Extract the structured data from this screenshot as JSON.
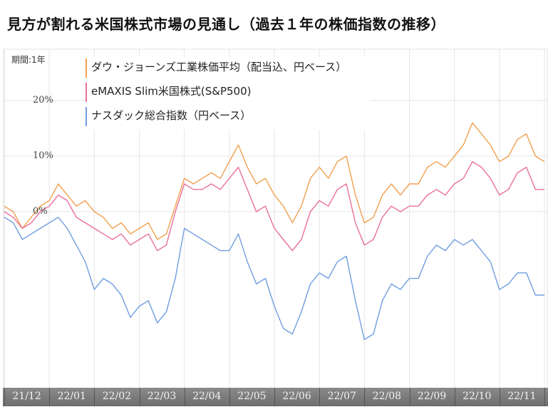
{
  "title": "見方が割れる米国株式市場の見通し（過去１年の株価指数の推移）",
  "chart_data": {
    "type": "line",
    "title": "見方が割れる米国株式市場の見通し（過去１年の株価指数の推移）",
    "period_label": "期間:1年",
    "xlabel": "",
    "ylabel": "",
    "ylim": [
      -24,
      29
    ],
    "yticks": [
      {
        "value": 20,
        "label": "20%"
      },
      {
        "value": 10,
        "label": "10%"
      },
      {
        "value": 0,
        "label": "0%"
      }
    ],
    "categories": [
      "21/12",
      "22/01",
      "22/02",
      "22/03",
      "22/04",
      "22/05",
      "22/06",
      "22/07",
      "22/08",
      "22/09",
      "22/10",
      "22/11"
    ],
    "x_unit": "month index (0 = start of 21/11 end, 12 = 22/11 end)",
    "legend": "top-left",
    "grid": true,
    "series": [
      {
        "name": "ダウ・ジョーンズ工業株価平均（配当込、円ベース）",
        "color": "#f0a050",
        "x": [
          0,
          0.2,
          0.4,
          0.6,
          0.8,
          1.0,
          1.2,
          1.4,
          1.6,
          1.8,
          2.0,
          2.2,
          2.4,
          2.6,
          2.8,
          3.0,
          3.2,
          3.4,
          3.6,
          3.8,
          4.0,
          4.2,
          4.4,
          4.6,
          4.8,
          5.0,
          5.2,
          5.4,
          5.6,
          5.8,
          6.0,
          6.2,
          6.4,
          6.6,
          6.8,
          7.0,
          7.2,
          7.4,
          7.6,
          7.8,
          8.0,
          8.2,
          8.4,
          8.6,
          8.8,
          9.0,
          9.2,
          9.4,
          9.6,
          9.8,
          10.0,
          10.2,
          10.4,
          10.6,
          10.8,
          11.0,
          11.2,
          11.4,
          11.6,
          11.8,
          12.0
        ],
        "values": [
          1,
          0,
          -3,
          -1,
          1,
          2,
          5,
          3,
          1,
          2,
          0,
          -1,
          -3,
          -2,
          -4,
          -3,
          -2,
          -5,
          -4,
          1,
          6,
          5,
          6,
          7,
          6,
          9,
          12,
          8,
          5,
          6,
          3,
          1,
          -2,
          1,
          6,
          8,
          6,
          9,
          10,
          3,
          -2,
          -1,
          3,
          5,
          3,
          5,
          5,
          8,
          9,
          8,
          10,
          12,
          16,
          14,
          12,
          9,
          10,
          13,
          14,
          10,
          9
        ]
      },
      {
        "name": "eMAXIS Slim米国株式(S&P500)",
        "color": "#e8709a",
        "x": [
          0,
          0.2,
          0.4,
          0.6,
          0.8,
          1.0,
          1.2,
          1.4,
          1.6,
          1.8,
          2.0,
          2.2,
          2.4,
          2.6,
          2.8,
          3.0,
          3.2,
          3.4,
          3.6,
          3.8,
          4.0,
          4.2,
          4.4,
          4.6,
          4.8,
          5.0,
          5.2,
          5.4,
          5.6,
          5.8,
          6.0,
          6.2,
          6.4,
          6.6,
          6.8,
          7.0,
          7.2,
          7.4,
          7.6,
          7.8,
          8.0,
          8.2,
          8.4,
          8.6,
          8.8,
          9.0,
          9.2,
          9.4,
          9.6,
          9.8,
          10.0,
          10.2,
          10.4,
          10.6,
          10.8,
          11.0,
          11.2,
          11.4,
          11.6,
          11.8,
          12.0
        ],
        "values": [
          0,
          -1,
          -3,
          -2,
          0,
          1,
          3,
          2,
          -1,
          -2,
          -3,
          -4,
          -5,
          -4,
          -6,
          -5,
          -4,
          -7,
          -6,
          0,
          5,
          4,
          4,
          5,
          4,
          6,
          8,
          4,
          0,
          1,
          -3,
          -5,
          -7,
          -5,
          0,
          2,
          1,
          4,
          5,
          -2,
          -6,
          -5,
          -1,
          1,
          0,
          1,
          1,
          3,
          4,
          3,
          5,
          6,
          9,
          8,
          6,
          3,
          4,
          7,
          8,
          4,
          4
        ]
      },
      {
        "name": "ナスダック総合指数（円ベース）",
        "color": "#6f9ee0",
        "x": [
          0,
          0.2,
          0.4,
          0.6,
          0.8,
          1.0,
          1.2,
          1.4,
          1.6,
          1.8,
          2.0,
          2.2,
          2.4,
          2.6,
          2.8,
          3.0,
          3.2,
          3.4,
          3.6,
          3.8,
          4.0,
          4.2,
          4.4,
          4.6,
          4.8,
          5.0,
          5.2,
          5.4,
          5.6,
          5.8,
          6.0,
          6.2,
          6.4,
          6.6,
          6.8,
          7.0,
          7.2,
          7.4,
          7.6,
          7.8,
          8.0,
          8.2,
          8.4,
          8.6,
          8.8,
          9.0,
          9.2,
          9.4,
          9.6,
          9.8,
          10.0,
          10.2,
          10.4,
          10.6,
          10.8,
          11.0,
          11.2,
          11.4,
          11.6,
          11.8,
          12.0
        ],
        "values": [
          -1,
          -2,
          -5,
          -4,
          -3,
          -2,
          -1,
          -3,
          -6,
          -9,
          -14,
          -12,
          -13,
          -15,
          -19,
          -17,
          -16,
          -20,
          -18,
          -12,
          -3,
          -4,
          -5,
          -6,
          -7,
          -7,
          -4,
          -9,
          -13,
          -12,
          -17,
          -21,
          -22,
          -18,
          -13,
          -11,
          -12,
          -9,
          -8,
          -16,
          -23,
          -22,
          -16,
          -13,
          -14,
          -12,
          -12,
          -8,
          -6,
          -7,
          -5,
          -6,
          -5,
          -7,
          -9,
          -14,
          -13,
          -11,
          -11,
          -15,
          -15
        ]
      }
    ]
  }
}
